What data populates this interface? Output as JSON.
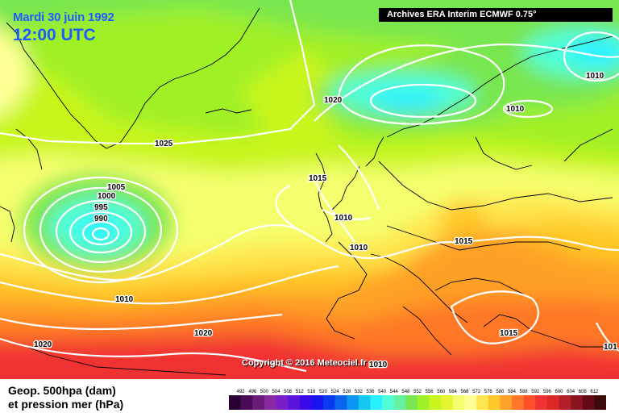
{
  "header": {
    "date": "Mardi 30 juin 1992",
    "time": "12:00 UTC",
    "source": "Archives ERA Interim ECMWF 0.75°"
  },
  "copyright": "Copyright © 2016 Meteociel.fr",
  "legend": {
    "line1": "Geop. 500hpa (dam)",
    "line2": "et pression mer (hPa)"
  },
  "isobar_labels": [
    "1025",
    "1020",
    "1010",
    "1010",
    "1015",
    "1010",
    "1010",
    "1005",
    "1000",
    "995",
    "990",
    "1010",
    "1020",
    "1020",
    "1015",
    "1015",
    "1010",
    "101"
  ],
  "scale": {
    "values": [
      "492",
      "496",
      "500",
      "504",
      "508",
      "512",
      "516",
      "520",
      "524",
      "528",
      "532",
      "536",
      "540",
      "544",
      "548",
      "552",
      "556",
      "560",
      "564",
      "568",
      "572",
      "576",
      "580",
      "584",
      "588",
      "592",
      "596",
      "600",
      "604",
      "608",
      "612"
    ],
    "colors": [
      "#2a0033",
      "#4a0a55",
      "#6a1a78",
      "#8a2aa0",
      "#7a1ec8",
      "#5a14dc",
      "#3a0ae8",
      "#1a14f0",
      "#0a3af0",
      "#0a64f0",
      "#0a96f0",
      "#14c8f0",
      "#28f0ff",
      "#50ffd8",
      "#64f0a0",
      "#78e650",
      "#a0f028",
      "#c8f51e",
      "#e6f532",
      "#f5ff6e",
      "#ffff96",
      "#ffe650",
      "#ffc828",
      "#ffa028",
      "#ff7828",
      "#ff5028",
      "#f03232",
      "#dc2828",
      "#b41e28",
      "#8c1420",
      "#640a14",
      "#3c0a0a"
    ]
  },
  "colors": {
    "title_blue": "#1e5cff",
    "isobar": "#ffffff",
    "coast": "#000000"
  }
}
